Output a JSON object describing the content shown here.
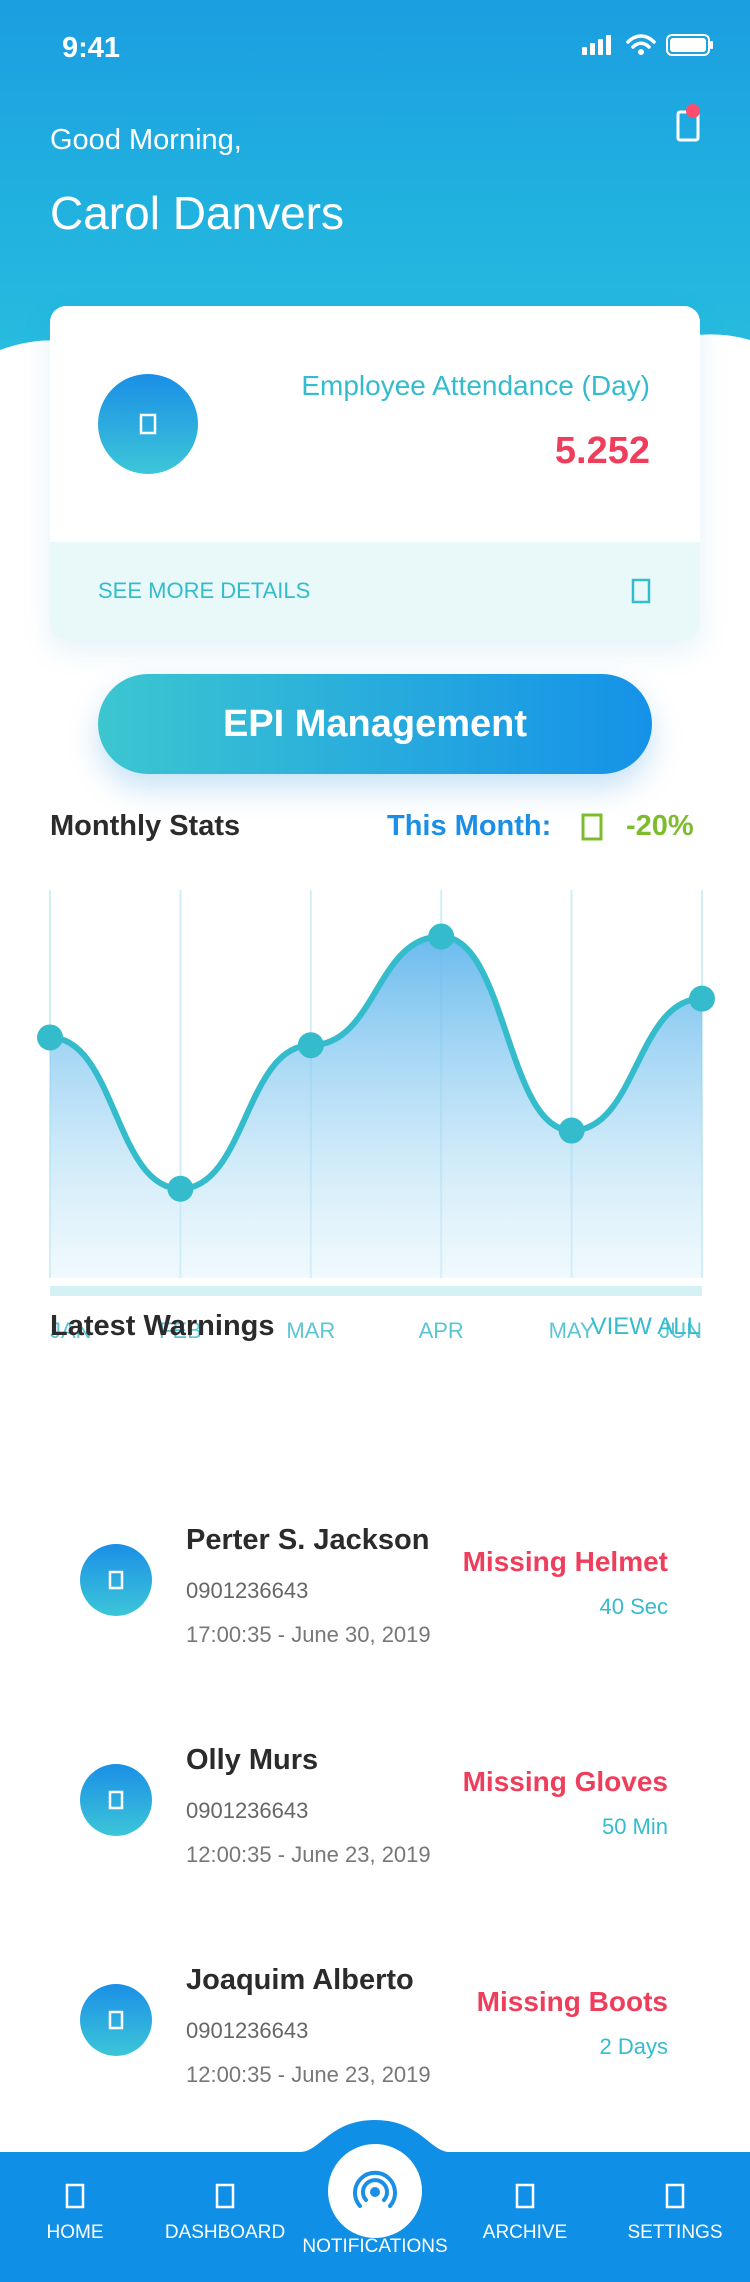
{
  "status_bar": {
    "time": "9:41"
  },
  "header": {
    "greeting": "Good Morning,",
    "user_name": "Carol Danvers"
  },
  "attendance_card": {
    "title": "Employee Attendance (Day)",
    "value": "5.252",
    "details_link": "SEE MORE DETAILS"
  },
  "primary_button": {
    "label": "EPI Management"
  },
  "stats": {
    "title": "Monthly Stats",
    "month_label": "This Month:",
    "month_change": "-20%"
  },
  "chart_data": {
    "type": "area",
    "title": "Monthly Stats",
    "categories": [
      "JAN",
      "FEB",
      "MAR",
      "APR",
      "MAY",
      "JUN"
    ],
    "values": [
      62,
      23,
      60,
      88,
      38,
      72
    ],
    "ylim": [
      0,
      100
    ],
    "grid": true
  },
  "warnings": {
    "title": "Latest Warnings",
    "view_all": "VIEW ALL",
    "items": [
      {
        "name": "Perter S. Jackson",
        "phone": "0901236643",
        "time": "17:00:35 - June 30, 2019",
        "type": "Missing Helmet",
        "ago": "40 Sec"
      },
      {
        "name": "Olly Murs",
        "phone": "0901236643",
        "time": "12:00:35 - June 23, 2019",
        "type": "Missing Gloves",
        "ago": "50 Min"
      },
      {
        "name": "Joaquim Alberto",
        "phone": "0901236643",
        "time": "12:00:35 - June 23, 2019",
        "type": "Missing Boots",
        "ago": "2 Days"
      }
    ]
  },
  "nav": {
    "items": [
      {
        "label": "HOME",
        "icon": "home-icon"
      },
      {
        "label": "DASHBOARD",
        "icon": "dashboard-icon"
      },
      {
        "label": "NOTIFICATIONS",
        "icon": "broadcast-icon"
      },
      {
        "label": "ARCHIVE",
        "icon": "archive-icon"
      },
      {
        "label": "SETTINGS",
        "icon": "settings-icon"
      }
    ]
  },
  "colors": {
    "primary": "#1b8fe6",
    "accent": "#35bccc",
    "danger": "#ef3e5c",
    "positive": "#7dbd2b"
  }
}
